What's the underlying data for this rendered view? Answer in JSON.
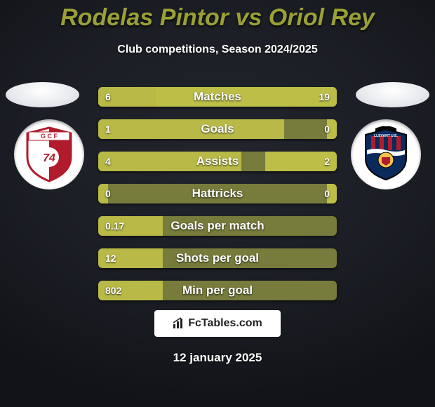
{
  "title": {
    "player_left": "Rodelas Pintor",
    "vs": "vs",
    "player_right": "Oriol Rey",
    "color": "#9aa036"
  },
  "subtitle": {
    "text": "Club competitions, Season 2024/2025",
    "color": "#ffffff"
  },
  "background": {
    "top": "#22252d",
    "middle": "#1b1e24",
    "bottom": "#111318"
  },
  "head_ellipse_color": "#e7e9ed",
  "crest_bg": "#ffffff",
  "team_left": {
    "name": "Granada",
    "colors": {
      "primary": "#b11c2c",
      "secondary": "#ffffff",
      "outline": "#0a2a5c"
    }
  },
  "team_right": {
    "name": "Levante",
    "colors": {
      "primary": "#0a2a5c",
      "secondary": "#b11c2c",
      "accent": "#f3c14b"
    }
  },
  "bars": {
    "track_color": "#777b3b",
    "left_color": "#b8b946",
    "right_color": "#bcbe47",
    "text_color": "#ffffff",
    "rows": [
      {
        "label": "Matches",
        "left_val": "6",
        "right_val": "19",
        "left_frac": 0.24,
        "right_frac": 0.76
      },
      {
        "label": "Goals",
        "left_val": "1",
        "right_val": "0",
        "left_frac": 0.78,
        "right_frac": 0.04
      },
      {
        "label": "Assists",
        "left_val": "4",
        "right_val": "2",
        "left_frac": 0.6,
        "right_frac": 0.3
      },
      {
        "label": "Hattricks",
        "left_val": "0",
        "right_val": "0",
        "left_frac": 0.04,
        "right_frac": 0.04
      },
      {
        "label": "Goals per match",
        "left_val": "0.17",
        "right_val": "",
        "left_frac": 0.27,
        "right_frac": 0.0
      },
      {
        "label": "Shots per goal",
        "left_val": "12",
        "right_val": "",
        "left_frac": 0.27,
        "right_frac": 0.0
      },
      {
        "label": "Min per goal",
        "left_val": "802",
        "right_val": "",
        "left_frac": 0.27,
        "right_frac": 0.0
      }
    ]
  },
  "logo": {
    "bg": "#ffffff",
    "text": "FcTables.com",
    "text_color": "#222222"
  },
  "date": {
    "text": "12 january 2025",
    "color": "#ffffff"
  }
}
